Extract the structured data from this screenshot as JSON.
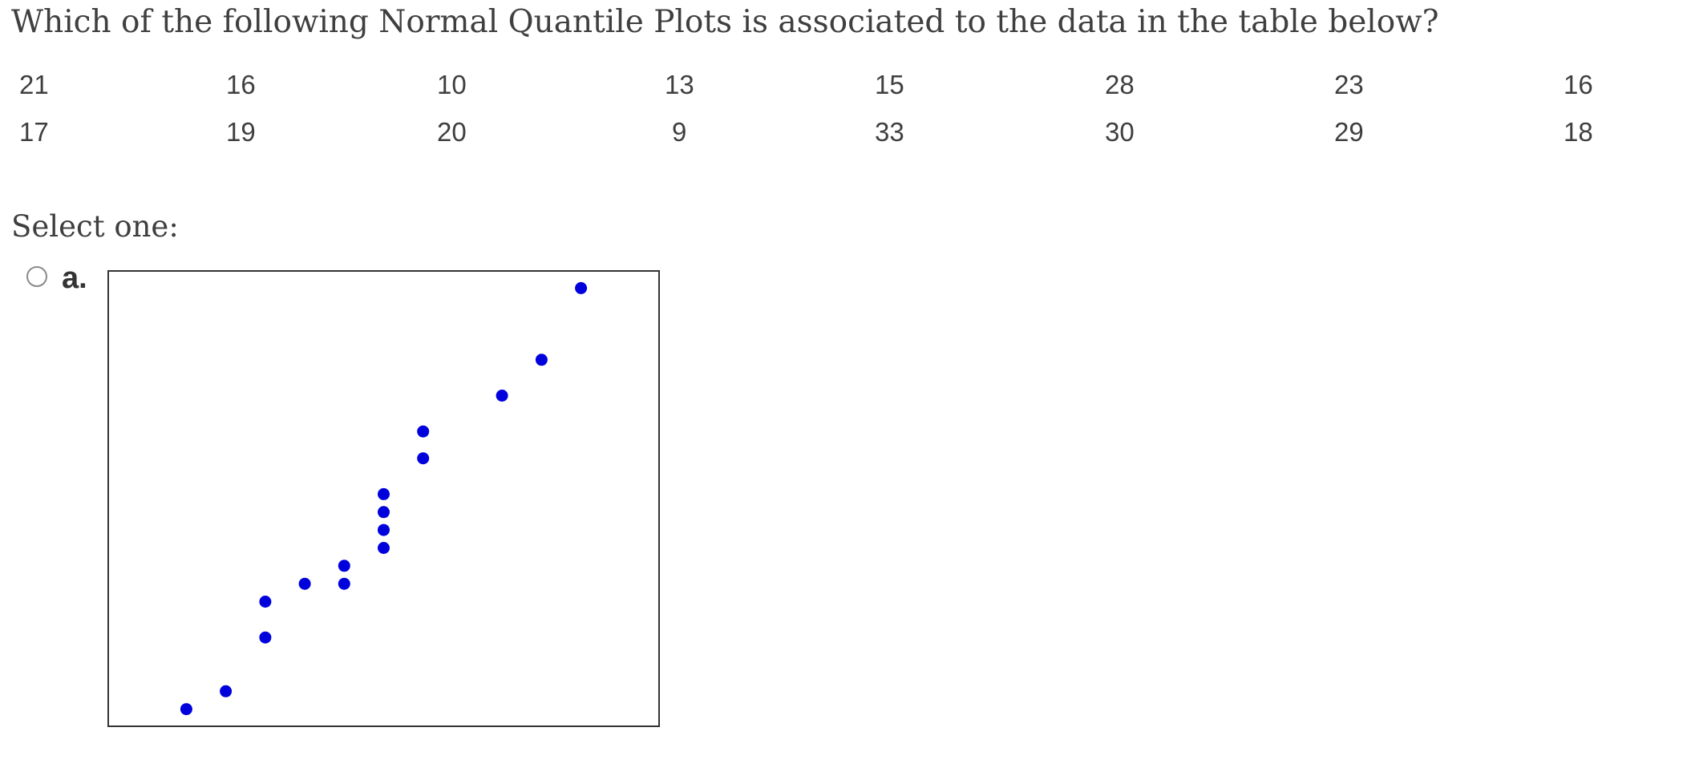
{
  "question": {
    "text": "Which of the following Normal Quantile Plots is associated to the data in the table below?"
  },
  "data_table": {
    "rows": [
      [
        "21",
        "16",
        "10",
        "13",
        "15",
        "28",
        "23",
        "16"
      ],
      [
        "17",
        "19",
        "20",
        "9",
        "33",
        "30",
        "29",
        "18"
      ]
    ]
  },
  "select_label": "Select one:",
  "options": [
    {
      "letter": "a.",
      "selected": false
    }
  ],
  "chart_data": {
    "type": "scatter",
    "title": "",
    "xlabel": "",
    "ylabel": "",
    "grid": false,
    "marker_color": "#0000dd",
    "points": [
      {
        "x": -2.04,
        "y": 9
      },
      {
        "x": -1.53,
        "y": 10
      },
      {
        "x": -1.02,
        "y": 13
      },
      {
        "x": -1.02,
        "y": 15
      },
      {
        "x": -0.51,
        "y": 16
      },
      {
        "x": 0.0,
        "y": 16
      },
      {
        "x": 0.0,
        "y": 17
      },
      {
        "x": 0.51,
        "y": 18
      },
      {
        "x": 0.51,
        "y": 19
      },
      {
        "x": 0.51,
        "y": 20
      },
      {
        "x": 0.51,
        "y": 21
      },
      {
        "x": 1.02,
        "y": 23
      },
      {
        "x": 1.02,
        "y": 24.5
      },
      {
        "x": 2.04,
        "y": 26.5
      },
      {
        "x": 2.55,
        "y": 28.5
      },
      {
        "x": 3.06,
        "y": 32.5
      }
    ],
    "xlim": [
      -3.06,
      4.08
    ],
    "ylim": [
      8,
      33.5
    ]
  }
}
